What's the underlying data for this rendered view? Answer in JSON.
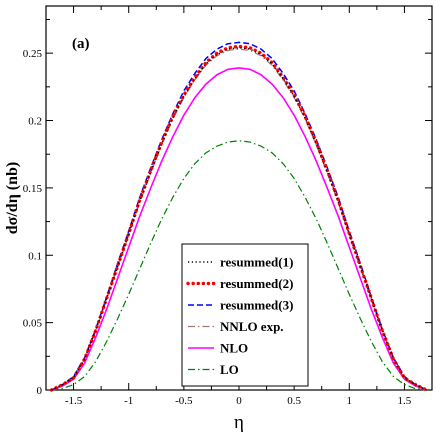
{
  "chart_data": {
    "type": "line",
    "panel_label": "(a)",
    "xlabel": "η",
    "ylabel": "dσ/dη (nb)",
    "xlim": [
      -1.75,
      1.75
    ],
    "ylim": [
      0,
      0.285
    ],
    "xticks": [
      -1.5,
      -1,
      -0.5,
      0,
      0.5,
      1,
      1.5
    ],
    "xtick_labels": [
      "-1.5",
      "-1",
      "-0.5",
      "0",
      "0.5",
      "1",
      "1.5"
    ],
    "yticks": [
      0,
      0.05,
      0.1,
      0.15,
      0.2,
      0.25
    ],
    "ytick_labels": [
      "0",
      "0.05",
      "0.1",
      "0.15",
      "0.2",
      "0.25"
    ],
    "grid": false,
    "legend_position": "bottom-center",
    "series": [
      {
        "name": "resummed(1)",
        "color": "#000000",
        "style": "dotted",
        "x": [
          -1.7,
          -1.6,
          -1.5,
          -1.4,
          -1.3,
          -1.2,
          -1.1,
          -1.0,
          -0.9,
          -0.8,
          -0.7,
          -0.6,
          -0.5,
          -0.4,
          -0.3,
          -0.2,
          -0.1,
          0,
          0.1,
          0.2,
          0.3,
          0.4,
          0.5,
          0.6,
          0.7,
          0.8,
          0.9,
          1.0,
          1.1,
          1.2,
          1.3,
          1.4,
          1.5,
          1.6,
          1.7
        ],
        "y": [
          0.0,
          0.004,
          0.009,
          0.023,
          0.044,
          0.068,
          0.092,
          0.116,
          0.14,
          0.162,
          0.183,
          0.202,
          0.218,
          0.231,
          0.242,
          0.249,
          0.253,
          0.254,
          0.253,
          0.249,
          0.242,
          0.231,
          0.218,
          0.202,
          0.183,
          0.162,
          0.14,
          0.116,
          0.092,
          0.068,
          0.044,
          0.023,
          0.009,
          0.004,
          0.0
        ]
      },
      {
        "name": "resummed(2)",
        "color": "#ff0000",
        "style": "dots",
        "x": [
          -1.7,
          -1.6,
          -1.5,
          -1.4,
          -1.3,
          -1.2,
          -1.1,
          -1.0,
          -0.9,
          -0.8,
          -0.7,
          -0.6,
          -0.5,
          -0.4,
          -0.3,
          -0.2,
          -0.1,
          0,
          0.1,
          0.2,
          0.3,
          0.4,
          0.5,
          0.6,
          0.7,
          0.8,
          0.9,
          1.0,
          1.1,
          1.2,
          1.3,
          1.4,
          1.5,
          1.6,
          1.7
        ],
        "y": [
          0.0,
          0.004,
          0.009,
          0.023,
          0.044,
          0.068,
          0.092,
          0.116,
          0.141,
          0.163,
          0.184,
          0.203,
          0.219,
          0.232,
          0.243,
          0.25,
          0.254,
          0.255,
          0.254,
          0.25,
          0.243,
          0.232,
          0.219,
          0.203,
          0.184,
          0.163,
          0.141,
          0.116,
          0.092,
          0.068,
          0.044,
          0.023,
          0.009,
          0.004,
          0.0
        ]
      },
      {
        "name": "resummed(3)",
        "color": "#0000ff",
        "style": "dashed",
        "x": [
          -1.7,
          -1.6,
          -1.5,
          -1.4,
          -1.3,
          -1.2,
          -1.1,
          -1.0,
          -0.9,
          -0.8,
          -0.7,
          -0.6,
          -0.5,
          -0.4,
          -0.3,
          -0.2,
          -0.1,
          0,
          0.1,
          0.2,
          0.3,
          0.4,
          0.5,
          0.6,
          0.7,
          0.8,
          0.9,
          1.0,
          1.1,
          1.2,
          1.3,
          1.4,
          1.5,
          1.6,
          1.7
        ],
        "y": [
          0.0,
          0.004,
          0.01,
          0.024,
          0.045,
          0.069,
          0.094,
          0.118,
          0.143,
          0.165,
          0.186,
          0.205,
          0.222,
          0.235,
          0.246,
          0.253,
          0.257,
          0.258,
          0.257,
          0.253,
          0.246,
          0.235,
          0.222,
          0.205,
          0.186,
          0.165,
          0.143,
          0.118,
          0.094,
          0.069,
          0.045,
          0.024,
          0.01,
          0.004,
          0.0
        ]
      },
      {
        "name": "NNLO exp.",
        "color": "#a07878",
        "style": "dashdot",
        "x": [
          -1.7,
          -1.6,
          -1.5,
          -1.4,
          -1.3,
          -1.2,
          -1.1,
          -1.0,
          -0.9,
          -0.8,
          -0.7,
          -0.6,
          -0.5,
          -0.4,
          -0.3,
          -0.2,
          -0.1,
          0,
          0.1,
          0.2,
          0.3,
          0.4,
          0.5,
          0.6,
          0.7,
          0.8,
          0.9,
          1.0,
          1.1,
          1.2,
          1.3,
          1.4,
          1.5,
          1.6,
          1.7
        ],
        "y": [
          0.0,
          0.004,
          0.009,
          0.023,
          0.044,
          0.067,
          0.091,
          0.115,
          0.139,
          0.161,
          0.182,
          0.201,
          0.217,
          0.23,
          0.241,
          0.248,
          0.252,
          0.253,
          0.252,
          0.248,
          0.241,
          0.23,
          0.217,
          0.201,
          0.182,
          0.161,
          0.139,
          0.115,
          0.091,
          0.067,
          0.044,
          0.023,
          0.009,
          0.004,
          0.0
        ]
      },
      {
        "name": "NLO",
        "color": "#ff00ff",
        "style": "solid",
        "x": [
          -1.7,
          -1.6,
          -1.5,
          -1.4,
          -1.3,
          -1.2,
          -1.1,
          -1.0,
          -0.9,
          -0.8,
          -0.7,
          -0.6,
          -0.5,
          -0.4,
          -0.3,
          -0.2,
          -0.1,
          0,
          0.1,
          0.2,
          0.3,
          0.4,
          0.5,
          0.6,
          0.7,
          0.8,
          0.9,
          1.0,
          1.1,
          1.2,
          1.3,
          1.4,
          1.5,
          1.6,
          1.7
        ],
        "y": [
          0.0,
          0.003,
          0.008,
          0.02,
          0.039,
          0.06,
          0.083,
          0.106,
          0.129,
          0.15,
          0.17,
          0.188,
          0.204,
          0.217,
          0.227,
          0.234,
          0.238,
          0.239,
          0.238,
          0.234,
          0.227,
          0.217,
          0.204,
          0.188,
          0.17,
          0.15,
          0.129,
          0.106,
          0.083,
          0.06,
          0.039,
          0.02,
          0.008,
          0.003,
          0.0
        ]
      },
      {
        "name": "LO",
        "color": "#008000",
        "style": "dashdot",
        "x": [
          -1.7,
          -1.6,
          -1.5,
          -1.4,
          -1.3,
          -1.2,
          -1.1,
          -1.0,
          -0.9,
          -0.8,
          -0.7,
          -0.6,
          -0.5,
          -0.4,
          -0.3,
          -0.2,
          -0.1,
          0,
          0.1,
          0.2,
          0.3,
          0.4,
          0.5,
          0.6,
          0.7,
          0.8,
          0.9,
          1.0,
          1.1,
          1.2,
          1.3,
          1.4,
          1.5,
          1.6,
          1.7
        ],
        "y": [
          0.0,
          0.001,
          0.004,
          0.01,
          0.021,
          0.036,
          0.053,
          0.071,
          0.09,
          0.109,
          0.127,
          0.143,
          0.157,
          0.168,
          0.176,
          0.181,
          0.184,
          0.185,
          0.184,
          0.181,
          0.176,
          0.168,
          0.157,
          0.143,
          0.127,
          0.109,
          0.09,
          0.071,
          0.053,
          0.036,
          0.021,
          0.01,
          0.004,
          0.001,
          0.0
        ]
      }
    ]
  }
}
